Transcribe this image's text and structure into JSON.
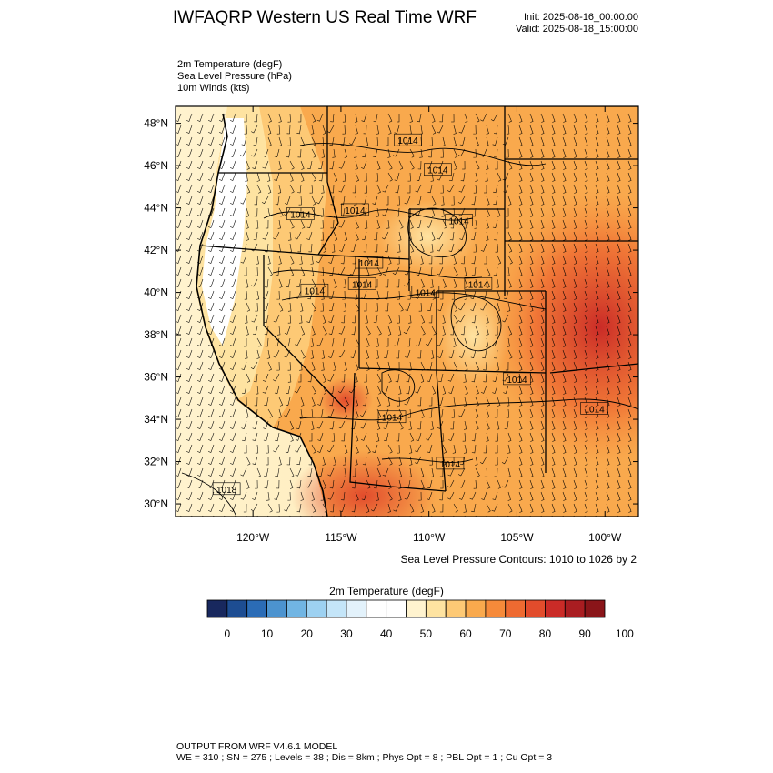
{
  "header": {
    "title": "IWFAQRP Western US Real Time WRF",
    "init": "Init: 2025-08-16_00:00:00",
    "valid": "Valid: 2025-08-18_15:00:00"
  },
  "fields": {
    "temperature": "2m Temperature   (degF)",
    "pressure": "Sea Level Pressure   (hPa)",
    "winds": "10m Winds   (kts)"
  },
  "map": {
    "lat_labels": [
      "48°N",
      "46°N",
      "44°N",
      "42°N",
      "40°N",
      "38°N",
      "36°N",
      "34°N",
      "32°N",
      "30°N"
    ],
    "lat_values": [
      48,
      46,
      44,
      42,
      40,
      38,
      36,
      34,
      32,
      30
    ],
    "lon_labels": [
      "120°W",
      "115°W",
      "110°W",
      "105°W",
      "100°W"
    ],
    "lon_values": [
      -120,
      -115,
      -110,
      -105,
      -100
    ],
    "isobar_labels": [
      {
        "text": "1014",
        "lon": -111.2,
        "lat": 47.2
      },
      {
        "text": "1014",
        "lon": -109.5,
        "lat": 45.8
      },
      {
        "text": "1014",
        "lon": -117.3,
        "lat": 43.7
      },
      {
        "text": "1014",
        "lon": -114.2,
        "lat": 43.9
      },
      {
        "text": "1014",
        "lon": -108.3,
        "lat": 43.4
      },
      {
        "text": "1014",
        "lon": -113.4,
        "lat": 41.4
      },
      {
        "text": "1014",
        "lon": -116.5,
        "lat": 40.1
      },
      {
        "text": "1014",
        "lon": -113.8,
        "lat": 40.4
      },
      {
        "text": "1014",
        "lon": -110.2,
        "lat": 40.0
      },
      {
        "text": "1014",
        "lon": -107.2,
        "lat": 40.4
      },
      {
        "text": "1014",
        "lon": -105.0,
        "lat": 35.9
      },
      {
        "text": "1014",
        "lon": -100.6,
        "lat": 34.5
      },
      {
        "text": "1014",
        "lon": -112.1,
        "lat": 34.1
      },
      {
        "text": "1014",
        "lon": -108.8,
        "lat": 31.9
      },
      {
        "text": "1018",
        "lon": -121.5,
        "lat": 30.7
      }
    ],
    "contour_note": "Sea Level Pressure Contours: 1010 to 1026 by 2"
  },
  "colorbar": {
    "title": "2m Temperature   (degF)",
    "colors": [
      "#18285e",
      "#1d4d92",
      "#2b6cb6",
      "#4c93cf",
      "#71b5e3",
      "#9dd1f1",
      "#c4e5f8",
      "#e3f2fb",
      "#ffffff",
      "#ffffff",
      "#fff3cf",
      "#fee3a1",
      "#fdc975",
      "#f9a94d",
      "#f68a3a",
      "#ee6a31",
      "#e24c2c",
      "#ca2b27",
      "#a91d21",
      "#8a1519"
    ],
    "tick_labels": [
      "0",
      "10",
      "20",
      "30",
      "40",
      "50",
      "60",
      "70",
      "80",
      "90",
      "100"
    ]
  },
  "footer": {
    "line1": "OUTPUT FROM WRF V4.6.1 MODEL",
    "line2": "WE = 310 ; SN = 275 ; Levels = 38 ; Dis = 8km ; Phys Opt = 8 ; PBL Opt = 1 ; Cu Opt = 3"
  }
}
